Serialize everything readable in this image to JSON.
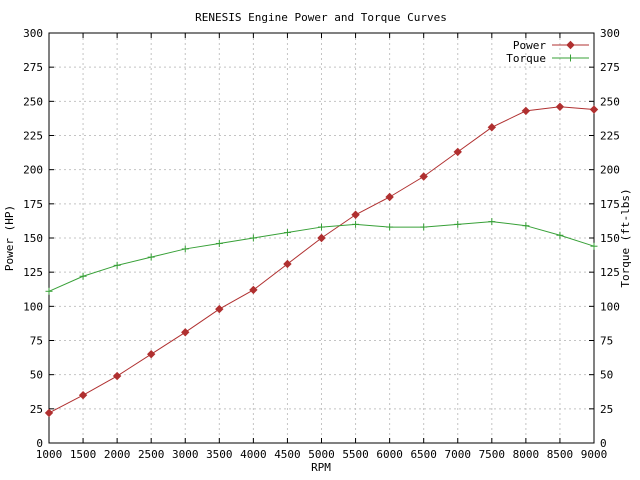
{
  "chart_data": {
    "type": "line",
    "title": "RENESIS Engine Power and Torque Curves",
    "xlabel": "RPM",
    "ylabel_left": "Power (HP)",
    "ylabel_right": "Torque (ft-lbs)",
    "xlim": [
      1000,
      9000
    ],
    "xtick_step": 500,
    "ylim": [
      0,
      300
    ],
    "ytick_step": 25,
    "grid": true,
    "legend_position": "top-right-inside",
    "background_color": "#ffffff",
    "grid_color": "#c4c4c4",
    "axis_color": "#000000",
    "x": [
      1000,
      1500,
      2000,
      2500,
      3000,
      3500,
      4000,
      4500,
      5000,
      5500,
      6000,
      6500,
      7000,
      7500,
      8000,
      8500,
      9000
    ],
    "series": [
      {
        "name": "Power",
        "axis": "left",
        "color": "#b03030",
        "marker": "diamond",
        "values": [
          22,
          35,
          49,
          65,
          81,
          98,
          112,
          131,
          150,
          167,
          180,
          195,
          213,
          231,
          243,
          246,
          244
        ]
      },
      {
        "name": "Torque",
        "axis": "right",
        "color": "#37a037",
        "marker": "plus",
        "values": [
          111,
          122,
          130,
          136,
          142,
          146,
          150,
          154,
          158,
          160,
          158,
          158,
          160,
          162,
          159,
          152,
          144
        ]
      }
    ]
  }
}
